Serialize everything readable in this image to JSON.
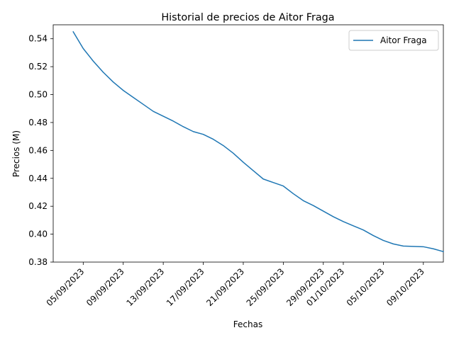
{
  "chart_data": {
    "type": "line",
    "title": "Historial de precios de Aitor Fraga",
    "xlabel": "Fechas",
    "ylabel": "Precios (M)",
    "ylim": [
      0.38,
      0.55
    ],
    "xlim": [
      "2023-09-02",
      "2023-10-11"
    ],
    "grid": false,
    "legend_position": "top-right",
    "x_ticks": [
      "2023-09-05",
      "2023-09-09",
      "2023-09-13",
      "2023-09-17",
      "2023-09-21",
      "2023-09-25",
      "2023-09-29",
      "2023-10-01",
      "2023-10-05",
      "2023-10-09"
    ],
    "x_tick_labels": [
      "05/09/2023",
      "09/09/2023",
      "13/09/2023",
      "17/09/2023",
      "21/09/2023",
      "25/09/2023",
      "29/09/2023",
      "01/10/2023",
      "05/10/2023",
      "09/10/2023"
    ],
    "y_ticks": [
      0.38,
      0.4,
      0.42,
      0.44,
      0.46,
      0.48,
      0.5,
      0.52,
      0.54
    ],
    "y_tick_labels": [
      "0.38",
      "0.40",
      "0.42",
      "0.44",
      "0.46",
      "0.48",
      "0.50",
      "0.52",
      "0.54"
    ],
    "series": [
      {
        "name": "Aitor Fraga",
        "color": "#1f77b4",
        "x": [
          "2023-09-04",
          "2023-09-05",
          "2023-09-06",
          "2023-09-07",
          "2023-09-08",
          "2023-09-09",
          "2023-09-10",
          "2023-09-11",
          "2023-09-12",
          "2023-09-13",
          "2023-09-14",
          "2023-09-15",
          "2023-09-16",
          "2023-09-17",
          "2023-09-18",
          "2023-09-19",
          "2023-09-20",
          "2023-09-21",
          "2023-09-22",
          "2023-09-23",
          "2023-09-24",
          "2023-09-25",
          "2023-09-26",
          "2023-09-27",
          "2023-09-28",
          "2023-09-29",
          "2023-09-30",
          "2023-10-01",
          "2023-10-02",
          "2023-10-03",
          "2023-10-04",
          "2023-10-05",
          "2023-10-06",
          "2023-10-07",
          "2023-10-08",
          "2023-10-09",
          "2023-10-10",
          "2023-10-11"
        ],
        "values": [
          0.545,
          0.533,
          0.524,
          0.516,
          0.509,
          0.503,
          0.498,
          0.493,
          0.488,
          0.4845,
          0.481,
          0.477,
          0.4735,
          0.4715,
          0.468,
          0.4635,
          0.458,
          0.4515,
          0.4455,
          0.4395,
          0.437,
          0.4345,
          0.429,
          0.424,
          0.4205,
          0.4165,
          0.4125,
          0.409,
          0.406,
          0.403,
          0.399,
          0.3955,
          0.393,
          0.3915,
          0.3912,
          0.391,
          0.3895,
          0.3875
        ]
      }
    ]
  }
}
